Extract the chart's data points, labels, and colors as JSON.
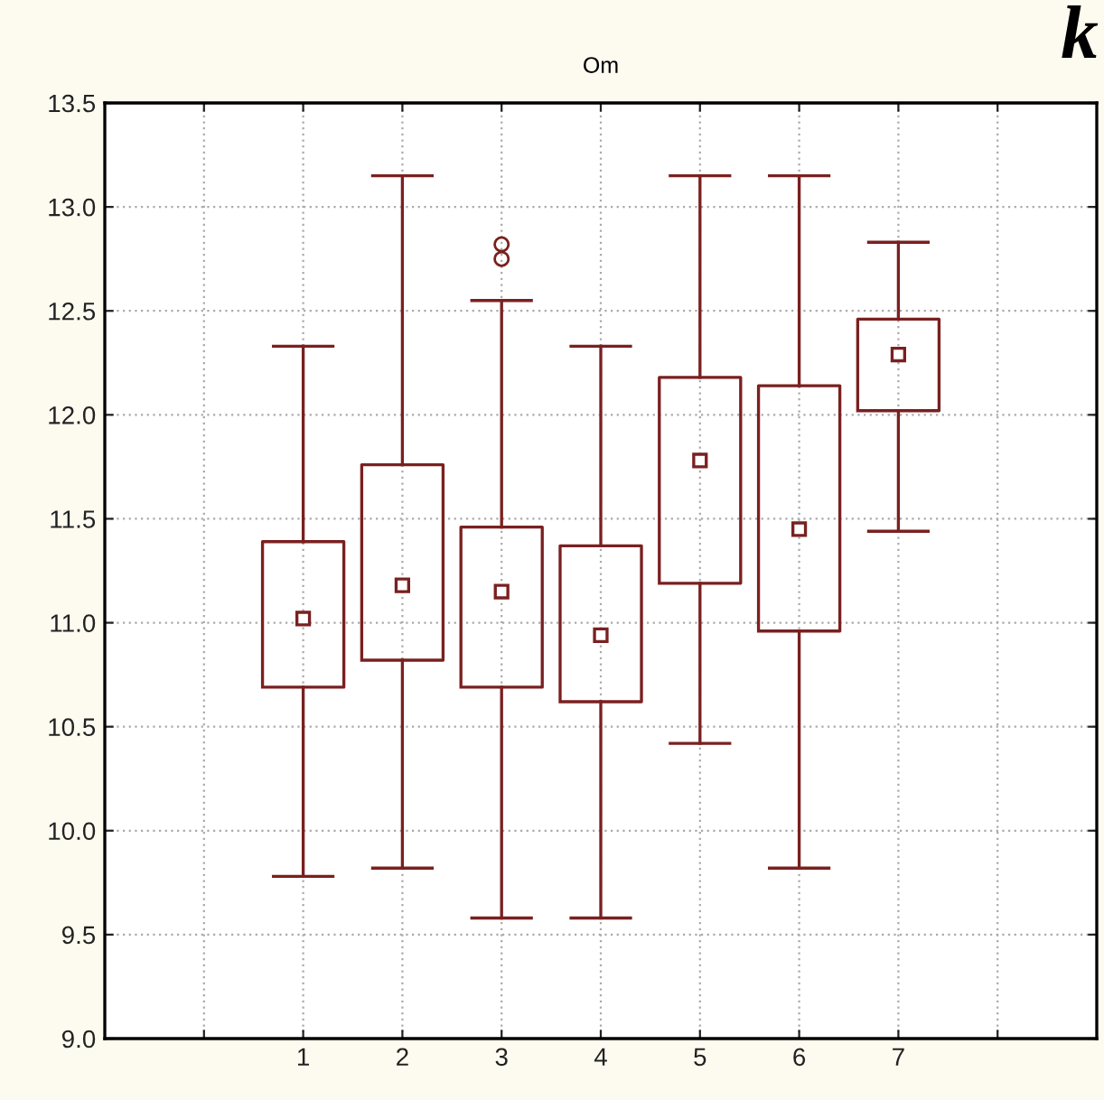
{
  "chart_data": {
    "type": "box",
    "title": "Om",
    "x": [
      1,
      2,
      3,
      4,
      5,
      6,
      7
    ],
    "boxes": [
      {
        "low": 9.78,
        "q1": 10.69,
        "median": 11.02,
        "q3": 11.39,
        "high": 12.33
      },
      {
        "low": 9.82,
        "q1": 10.82,
        "median": 11.18,
        "q3": 11.76,
        "high": 13.15
      },
      {
        "low": 9.58,
        "q1": 10.69,
        "median": 11.15,
        "q3": 11.46,
        "high": 12.55,
        "outliers": [
          12.82,
          12.75
        ]
      },
      {
        "low": 9.58,
        "q1": 10.62,
        "median": 10.94,
        "q3": 11.37,
        "high": 12.33
      },
      {
        "low": 10.42,
        "q1": 11.19,
        "median": 11.78,
        "q3": 12.18,
        "high": 13.15
      },
      {
        "low": 9.82,
        "q1": 10.96,
        "median": 11.45,
        "q3": 12.14,
        "high": 13.15
      },
      {
        "low": 11.44,
        "q1": 12.02,
        "median": 12.29,
        "q3": 12.46,
        "high": 12.83
      }
    ],
    "color": "#7a2020",
    "marker": "square",
    "annotations": [
      "k"
    ],
    "xlim": [
      -1,
      9
    ],
    "xticks": [
      {
        "value": 0,
        "label": null
      },
      1,
      2,
      3,
      4,
      5,
      6,
      7,
      {
        "value": 8,
        "label": null
      }
    ],
    "ylim": [
      9.0,
      13.5
    ],
    "yticks": [
      {
        "value": 9.0,
        "label": "9.0"
      },
      {
        "value": 9.5,
        "label": "9.5"
      },
      {
        "value": 10.0,
        "label": "10.0"
      },
      {
        "value": 10.5,
        "label": "10.5"
      },
      {
        "value": 11.0,
        "label": "11.0"
      },
      {
        "value": 11.5,
        "label": "11.5"
      },
      {
        "value": 12.0,
        "label": "12.0"
      },
      {
        "value": 12.5,
        "label": "12.5"
      },
      {
        "value": 13.0,
        "label": "13.0"
      },
      {
        "value": 13.5,
        "label": "13.5"
      }
    ],
    "grid": true
  }
}
